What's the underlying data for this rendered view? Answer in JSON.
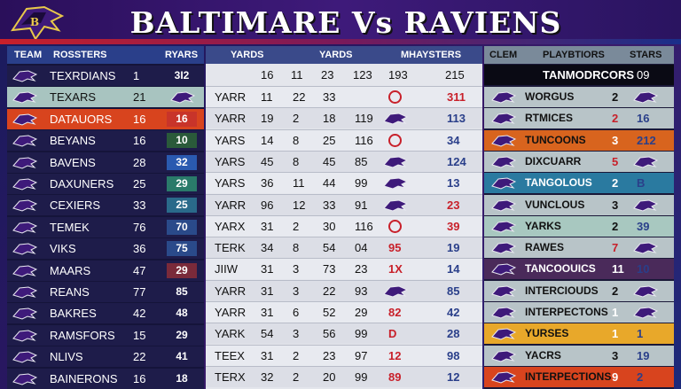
{
  "title": "BALTIMARE Vs RAVIENS",
  "colors": {
    "purple": "#3e1a7a",
    "red": "#c8202a",
    "orange": "#d8641e",
    "green": "#2a6a3a",
    "teal": "#2a7aa0",
    "blue": "#2a3f8a"
  },
  "left": {
    "headers": [
      "TEAM",
      "ROSSTERS",
      "RYARS"
    ],
    "rows": [
      {
        "name": "TEXRDIANS",
        "num": "1",
        "val": "3I2",
        "bg": "#1e1c4a",
        "vbg": ""
      },
      {
        "name": "TEXARS",
        "num": "21",
        "val": "",
        "bg": "#a8c4c0",
        "vbg": "",
        "dark": true,
        "icon": true
      },
      {
        "name": "DATAUORS",
        "num": "16",
        "val": "16",
        "bg": "#d8441e",
        "vbg": "#c8342a"
      },
      {
        "name": "BEYANS",
        "num": "16",
        "val": "10",
        "bg": "#1e1c4a",
        "vbg": "#2a5a3a"
      },
      {
        "name": "BAVENS",
        "num": "28",
        "val": "32",
        "bg": "#1e1c4a",
        "vbg": "#2a5ab0"
      },
      {
        "name": "DAXUNERS",
        "num": "25",
        "val": "29",
        "bg": "#1e1c4a",
        "vbg": "#2a7a6a"
      },
      {
        "name": "CEXIERS",
        "num": "33",
        "val": "25",
        "bg": "#1e1c4a",
        "vbg": "#2a6a8a"
      },
      {
        "name": "TEMEK",
        "num": "76",
        "val": "70",
        "bg": "#1e1c4a",
        "vbg": "#2a4a8a"
      },
      {
        "name": "VIKS",
        "num": "36",
        "val": "75",
        "bg": "#1e1c4a",
        "vbg": "#2a4a8a"
      },
      {
        "name": "MAARS",
        "num": "47",
        "val": "29",
        "bg": "#1e1c4a",
        "vbg": "#7a2a3a"
      },
      {
        "name": "REANS",
        "num": "77",
        "val": "85",
        "bg": "#1e1c4a",
        "vbg": ""
      },
      {
        "name": "BAKRES",
        "num": "42",
        "val": "48",
        "bg": "#1e1c4a",
        "vbg": ""
      },
      {
        "name": "RAMSFORS",
        "num": "15",
        "val": "29",
        "bg": "#1e1c4a",
        "vbg": ""
      },
      {
        "name": "NLIVS",
        "num": "22",
        "val": "41",
        "bg": "#1e1c4a",
        "vbg": ""
      },
      {
        "name": "BAINERONS",
        "num": "16",
        "val": "18",
        "bg": "#1e1c4a",
        "vbg": ""
      }
    ]
  },
  "middle": {
    "headers": [
      "YARDS",
      "YARDS",
      "MHAYSTERS"
    ],
    "first_row": [
      "16",
      "11",
      "23",
      "123",
      "193",
      "215"
    ],
    "rows": [
      {
        "label": "YARR",
        "a": "11",
        "b": "22",
        "c": "33",
        "d": "",
        "e": "311",
        "eColor": "#c8202a",
        "mark": "ring"
      },
      {
        "label": "YARR",
        "a": "19",
        "b": "2",
        "c": "18",
        "d": "119",
        "e": "113",
        "eColor": "#2a3f8a",
        "mark": "raven"
      },
      {
        "label": "YARS",
        "a": "14",
        "b": "8",
        "c": "25",
        "d": "116",
        "e": "34",
        "eColor": "#2a3f8a",
        "mark": "ring"
      },
      {
        "label": "YARS",
        "a": "45",
        "b": "8",
        "c": "45",
        "d": "85",
        "e": "124",
        "eColor": "#2a3f8a",
        "mark": "raven"
      },
      {
        "label": "YARS",
        "a": "36",
        "b": "11",
        "c": "44",
        "d": "99",
        "e": "13",
        "eColor": "#2a3f8a",
        "mark": "raven"
      },
      {
        "label": "YARR",
        "a": "96",
        "b": "12",
        "c": "33",
        "d": "91",
        "e": "23",
        "eColor": "#c8202a",
        "mark": "raven"
      },
      {
        "label": "YARX",
        "a": "31",
        "b": "2",
        "c": "30",
        "d": "116",
        "e": "39",
        "eColor": "#c8202a",
        "mark": "ring"
      },
      {
        "label": "TERK",
        "a": "34",
        "b": "8",
        "c": "54",
        "d": "04",
        "e": "19",
        "eColor": "#2a3f8a",
        "mark": "text",
        "markText": "95"
      },
      {
        "label": "JIIW",
        "a": "31",
        "b": "3",
        "c": "73",
        "d": "23",
        "e": "14",
        "eColor": "#2a3f8a",
        "mark": "text",
        "markText": "1X"
      },
      {
        "label": "YARR",
        "a": "31",
        "b": "3",
        "c": "22",
        "d": "93",
        "e": "85",
        "eColor": "#2a3f8a",
        "mark": "raven"
      },
      {
        "label": "YARR",
        "a": "31",
        "b": "6",
        "c": "52",
        "d": "29",
        "e": "42",
        "eColor": "#2a3f8a",
        "mark": "text",
        "markText": "82"
      },
      {
        "label": "YARK",
        "a": "54",
        "b": "3",
        "c": "56",
        "d": "99",
        "e": "28",
        "eColor": "#2a3f8a",
        "mark": "text",
        "markText": "D"
      },
      {
        "label": "TEEX",
        "a": "31",
        "b": "2",
        "c": "23",
        "d": "97",
        "e": "98",
        "eColor": "#2a3f8a",
        "mark": "text",
        "markText": "12"
      },
      {
        "label": "TERX",
        "a": "32",
        "b": "2",
        "c": "20",
        "d": "99",
        "e": "12",
        "eColor": "#2a3f8a",
        "mark": "text",
        "markText": "89"
      }
    ]
  },
  "right": {
    "headers": [
      "CLEM",
      "PLAYBTIORS",
      "STARS"
    ],
    "first_row": {
      "name": "TANMODRCORS",
      "val": "09"
    },
    "rows": [
      {
        "name": "WORGUS",
        "num": "2",
        "val": "",
        "bg": "#b8c4c8",
        "numColor": "#111"
      },
      {
        "name": "RTMICES",
        "num": "2",
        "val": "16",
        "bg": "#b8c4c8",
        "numColor": "#c8202a"
      },
      {
        "name": "TUNCOONS",
        "num": "3",
        "val": "212",
        "bg": "#d8641e",
        "numColor": "#fff"
      },
      {
        "name": "DIXCUARR",
        "num": "5",
        "val": "",
        "bg": "#b8c4c8",
        "numColor": "#c8202a"
      },
      {
        "name": "TANGOLOUS",
        "num": "2",
        "val": "B",
        "bg": "#2a7aa0",
        "numColor": "#fff"
      },
      {
        "name": "VUNCLOUS",
        "num": "3",
        "val": "",
        "bg": "#b8c4c8",
        "numColor": "#111"
      },
      {
        "name": "YARKS",
        "num": "2",
        "val": "39",
        "bg": "#a8c8c0",
        "numColor": "#111"
      },
      {
        "name": "RAWES",
        "num": "7",
        "val": "",
        "bg": "#b8c4c8",
        "numColor": "#c8202a"
      },
      {
        "name": "TANCOOUICS",
        "num": "11",
        "val": "10",
        "bg": "#4a2a5a",
        "numColor": "#fff"
      },
      {
        "name": "INTERCIOUDS",
        "num": "2",
        "val": "",
        "bg": "#b8c4c8",
        "numColor": "#111"
      },
      {
        "name": "INTERPECTONS",
        "num": "1",
        "val": "",
        "bg": "#b8c4c8",
        "numColor": "#fff"
      },
      {
        "name": "YURSES",
        "num": "1",
        "val": "1",
        "bg": "#e8a82a",
        "numColor": "#fff"
      },
      {
        "name": "YACRS",
        "num": "3",
        "val": "19",
        "bg": "#b8c4c8",
        "numColor": "#111"
      },
      {
        "name": "INTERPECTIONS",
        "num": "9",
        "val": "2",
        "bg": "#d8441e",
        "numColor": "#fff"
      }
    ]
  }
}
